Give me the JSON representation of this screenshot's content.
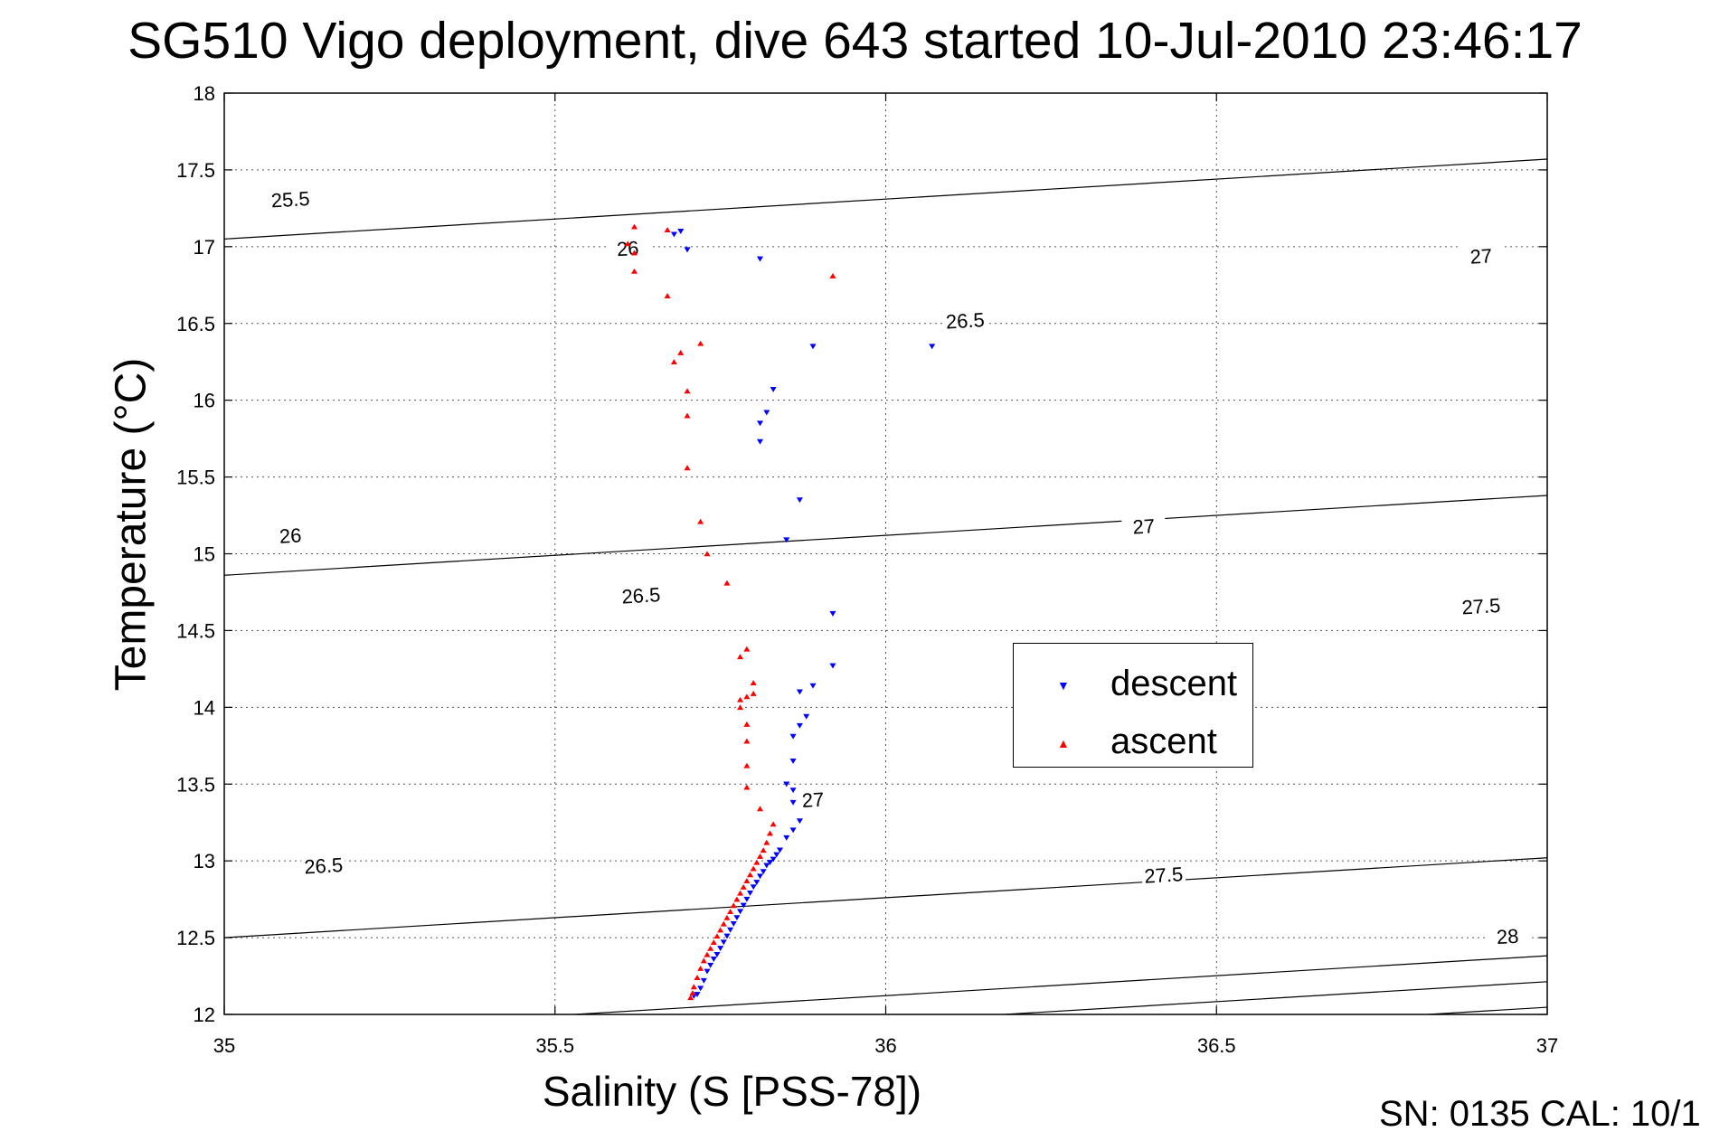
{
  "chart_data": {
    "type": "scatter",
    "title": "SG510 Vigo deployment, dive 643 started 10-Jul-2010 23:46:17",
    "xlabel": "Salinity (S [PSS-78])",
    "ylabel": "Temperature (°C)",
    "xlim": [
      35,
      37
    ],
    "ylim": [
      12,
      18
    ],
    "x_ticks": [
      "35",
      "35.5",
      "36",
      "36.5",
      "37"
    ],
    "y_ticks": [
      "12",
      "12.5",
      "13",
      "13.5",
      "14",
      "14.5",
      "15",
      "15.5",
      "16",
      "16.5",
      "17",
      "17.5",
      "18"
    ],
    "grid": true,
    "legend_position": "center-right",
    "footer_text": "SN: 0135  CAL: 10/1",
    "contours": {
      "slope": 0.26,
      "lines": [
        {
          "level": "25.5",
          "s0": 35.0,
          "t0": 17.05,
          "labels": [
            {
              "s": 35.1,
              "t": 17.31
            }
          ]
        },
        {
          "level": "26",
          "s0": 35.0,
          "t0": 14.86,
          "labels": [
            {
              "s": 35.1,
              "t": 15.12
            },
            {
              "s": 35.61,
              "t": 16.99
            }
          ]
        },
        {
          "level": "26.5",
          "s0": 35.0,
          "t0": 12.5,
          "labels": [
            {
              "s": 35.15,
              "t": 12.97
            },
            {
              "s": 35.63,
              "t": 14.73
            },
            {
              "s": 36.12,
              "t": 16.52
            }
          ]
        },
        {
          "level": "27",
          "s0": 35.53,
          "t0": 12.0,
          "labels": [
            {
              "s": 35.89,
              "t": 13.4
            },
            {
              "s": 36.39,
              "t": 15.18
            },
            {
              "s": 36.9,
              "t": 16.94
            }
          ]
        },
        {
          "level": "27.5",
          "s0": 36.18,
          "t0": 12.0,
          "labels": [
            {
              "s": 36.42,
              "t": 12.91
            },
            {
              "s": 36.9,
              "t": 14.66
            }
          ]
        },
        {
          "level": "28",
          "s0": 36.82,
          "t0": 12.0,
          "labels": [
            {
              "s": 36.94,
              "t": 12.51
            }
          ]
        }
      ]
    },
    "series": [
      {
        "name": "descent",
        "color": "#0000ff",
        "marker": "triangle-down",
        "points": [
          [
            35.68,
            17.08
          ],
          [
            35.69,
            17.1
          ],
          [
            35.7,
            16.98
          ],
          [
            35.81,
            16.92
          ],
          [
            35.89,
            16.35
          ],
          [
            36.07,
            16.35
          ],
          [
            35.83,
            16.07
          ],
          [
            35.82,
            15.92
          ],
          [
            35.81,
            15.85
          ],
          [
            35.81,
            15.73
          ],
          [
            35.87,
            15.35
          ],
          [
            35.85,
            15.09
          ],
          [
            35.92,
            14.61
          ],
          [
            35.92,
            14.27
          ],
          [
            35.89,
            14.14
          ],
          [
            35.87,
            14.1
          ],
          [
            35.88,
            13.94
          ],
          [
            35.87,
            13.88
          ],
          [
            35.86,
            13.81
          ],
          [
            35.86,
            13.65
          ],
          [
            35.85,
            13.5
          ],
          [
            35.86,
            13.46
          ],
          [
            35.86,
            13.38
          ],
          [
            35.87,
            13.26
          ],
          [
            35.86,
            13.2
          ],
          [
            35.85,
            13.15
          ],
          [
            35.84,
            13.07
          ],
          [
            35.835,
            13.04
          ],
          [
            35.83,
            13.01
          ],
          [
            35.825,
            12.99
          ],
          [
            35.82,
            12.97
          ],
          [
            35.815,
            12.93
          ],
          [
            35.81,
            12.9
          ],
          [
            35.805,
            12.86
          ],
          [
            35.8,
            12.83
          ],
          [
            35.795,
            12.79
          ],
          [
            35.79,
            12.75
          ],
          [
            35.785,
            12.71
          ],
          [
            35.78,
            12.67
          ],
          [
            35.775,
            12.63
          ],
          [
            35.77,
            12.59
          ],
          [
            35.765,
            12.55
          ],
          [
            35.76,
            12.51
          ],
          [
            35.755,
            12.47
          ],
          [
            35.75,
            12.43
          ],
          [
            35.745,
            12.39
          ],
          [
            35.74,
            12.36
          ],
          [
            35.735,
            12.32
          ],
          [
            35.73,
            12.28
          ],
          [
            35.725,
            12.22
          ],
          [
            35.72,
            12.17
          ],
          [
            35.715,
            12.13
          ],
          [
            35.71,
            12.12
          ]
        ]
      },
      {
        "name": "ascent",
        "color": "#ff0000",
        "marker": "triangle-up",
        "points": [
          [
            35.62,
            17.13
          ],
          [
            35.61,
            17.02
          ],
          [
            35.62,
            16.96
          ],
          [
            35.62,
            16.84
          ],
          [
            35.67,
            17.11
          ],
          [
            35.92,
            16.81
          ],
          [
            35.67,
            16.68
          ],
          [
            35.68,
            16.25
          ],
          [
            35.69,
            16.31
          ],
          [
            35.72,
            16.37
          ],
          [
            35.7,
            16.06
          ],
          [
            35.7,
            15.9
          ],
          [
            35.7,
            15.56
          ],
          [
            35.72,
            15.21
          ],
          [
            35.73,
            15.0
          ],
          [
            35.76,
            14.81
          ],
          [
            35.78,
            14.33
          ],
          [
            35.79,
            14.38
          ],
          [
            35.8,
            14.16
          ],
          [
            35.8,
            14.09
          ],
          [
            35.79,
            14.07
          ],
          [
            35.78,
            14.05
          ],
          [
            35.78,
            14.0
          ],
          [
            35.79,
            13.89
          ],
          [
            35.79,
            13.78
          ],
          [
            35.79,
            13.62
          ],
          [
            35.79,
            13.48
          ],
          [
            35.81,
            13.34
          ],
          [
            35.83,
            13.24
          ],
          [
            35.825,
            13.18
          ],
          [
            35.82,
            13.12
          ],
          [
            35.815,
            13.07
          ],
          [
            35.81,
            13.03
          ],
          [
            35.805,
            12.99
          ],
          [
            35.8,
            12.95
          ],
          [
            35.795,
            12.91
          ],
          [
            35.79,
            12.87
          ],
          [
            35.785,
            12.83
          ],
          [
            35.78,
            12.79
          ],
          [
            35.775,
            12.75
          ],
          [
            35.77,
            12.71
          ],
          [
            35.765,
            12.67
          ],
          [
            35.76,
            12.63
          ],
          [
            35.755,
            12.59
          ],
          [
            35.75,
            12.55
          ],
          [
            35.745,
            12.51
          ],
          [
            35.74,
            12.47
          ],
          [
            35.735,
            12.43
          ],
          [
            35.73,
            12.39
          ],
          [
            35.725,
            12.35
          ],
          [
            35.72,
            12.3
          ],
          [
            35.715,
            12.24
          ],
          [
            35.71,
            12.18
          ],
          [
            35.708,
            12.14
          ],
          [
            35.705,
            12.11
          ]
        ]
      }
    ]
  }
}
